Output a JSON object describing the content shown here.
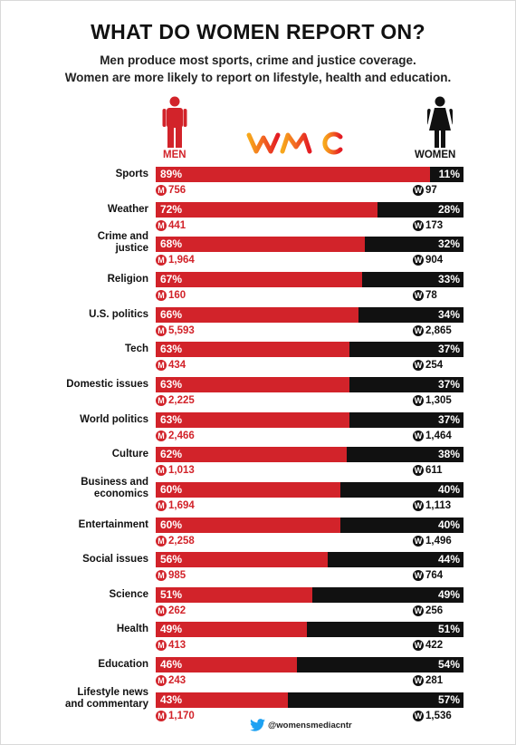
{
  "title": "WHAT DO WOMEN REPORT ON?",
  "subtitle_line1": "Men produce most sports, crime and justice coverage.",
  "subtitle_line2": "Women are more likely to report on lifestyle, health and education.",
  "legend": {
    "men": "MEN",
    "women": "WOMEN"
  },
  "badges": {
    "men": "M",
    "women": "W"
  },
  "footer": {
    "twitter_handle": "@womensmediacntr"
  },
  "colors": {
    "men": "#d2232a",
    "women": "#111111"
  },
  "icons": {
    "men": "man-figure-icon",
    "women": "woman-figure-icon",
    "twitter": "twitter-bird-icon",
    "logo": "wmc-logo"
  },
  "chart_data": {
    "type": "bar",
    "orientation": "horizontal-stacked-100",
    "categories": [
      "Sports",
      "Weather",
      "Crime and justice",
      "Religion",
      "U.S. politics",
      "Tech",
      "Domestic issues",
      "World politics",
      "Culture",
      "Business and economics",
      "Entertainment",
      "Social issues",
      "Science",
      "Health",
      "Education",
      "Lifestyle news and commentary"
    ],
    "category_lines": [
      [
        "Sports"
      ],
      [
        "Weather"
      ],
      [
        "Crime and",
        "justice"
      ],
      [
        "Religion"
      ],
      [
        "U.S. politics"
      ],
      [
        "Tech"
      ],
      [
        "Domestic issues"
      ],
      [
        "World politics"
      ],
      [
        "Culture"
      ],
      [
        "Business and",
        "economics"
      ],
      [
        "Entertainment"
      ],
      [
        "Social issues"
      ],
      [
        "Science"
      ],
      [
        "Health"
      ],
      [
        "Education"
      ],
      [
        "Lifestyle news",
        "and commentary"
      ]
    ],
    "series": [
      {
        "name": "MEN",
        "values": [
          89,
          72,
          68,
          67,
          66,
          63,
          63,
          63,
          62,
          60,
          60,
          56,
          51,
          49,
          46,
          43
        ],
        "labels": [
          "89%",
          "72%",
          "68%",
          "67%",
          "66%",
          "63%",
          "63%",
          "63%",
          "62%",
          "60%",
          "60%",
          "56%",
          "51%",
          "49%",
          "46%",
          "43%"
        ],
        "counts": [
          "756",
          "441",
          "1,964",
          "160",
          "5,593",
          "434",
          "2,225",
          "2,466",
          "1,013",
          "1,694",
          "2,258",
          "985",
          "262",
          "413",
          "243",
          "1,170"
        ]
      },
      {
        "name": "WOMEN",
        "values": [
          11,
          28,
          32,
          33,
          34,
          37,
          37,
          37,
          38,
          40,
          40,
          44,
          49,
          51,
          54,
          57
        ],
        "labels": [
          "11%",
          "28%",
          "32%",
          "33%",
          "34%",
          "37%",
          "37%",
          "37%",
          "38%",
          "40%",
          "40%",
          "44%",
          "49%",
          "51%",
          "54%",
          "57%"
        ],
        "counts": [
          "97",
          "173",
          "904",
          "78",
          "2,865",
          "254",
          "1,305",
          "1,464",
          "611",
          "1,113",
          "1,496",
          "764",
          "256",
          "422",
          "281",
          "1,536"
        ]
      }
    ]
  }
}
